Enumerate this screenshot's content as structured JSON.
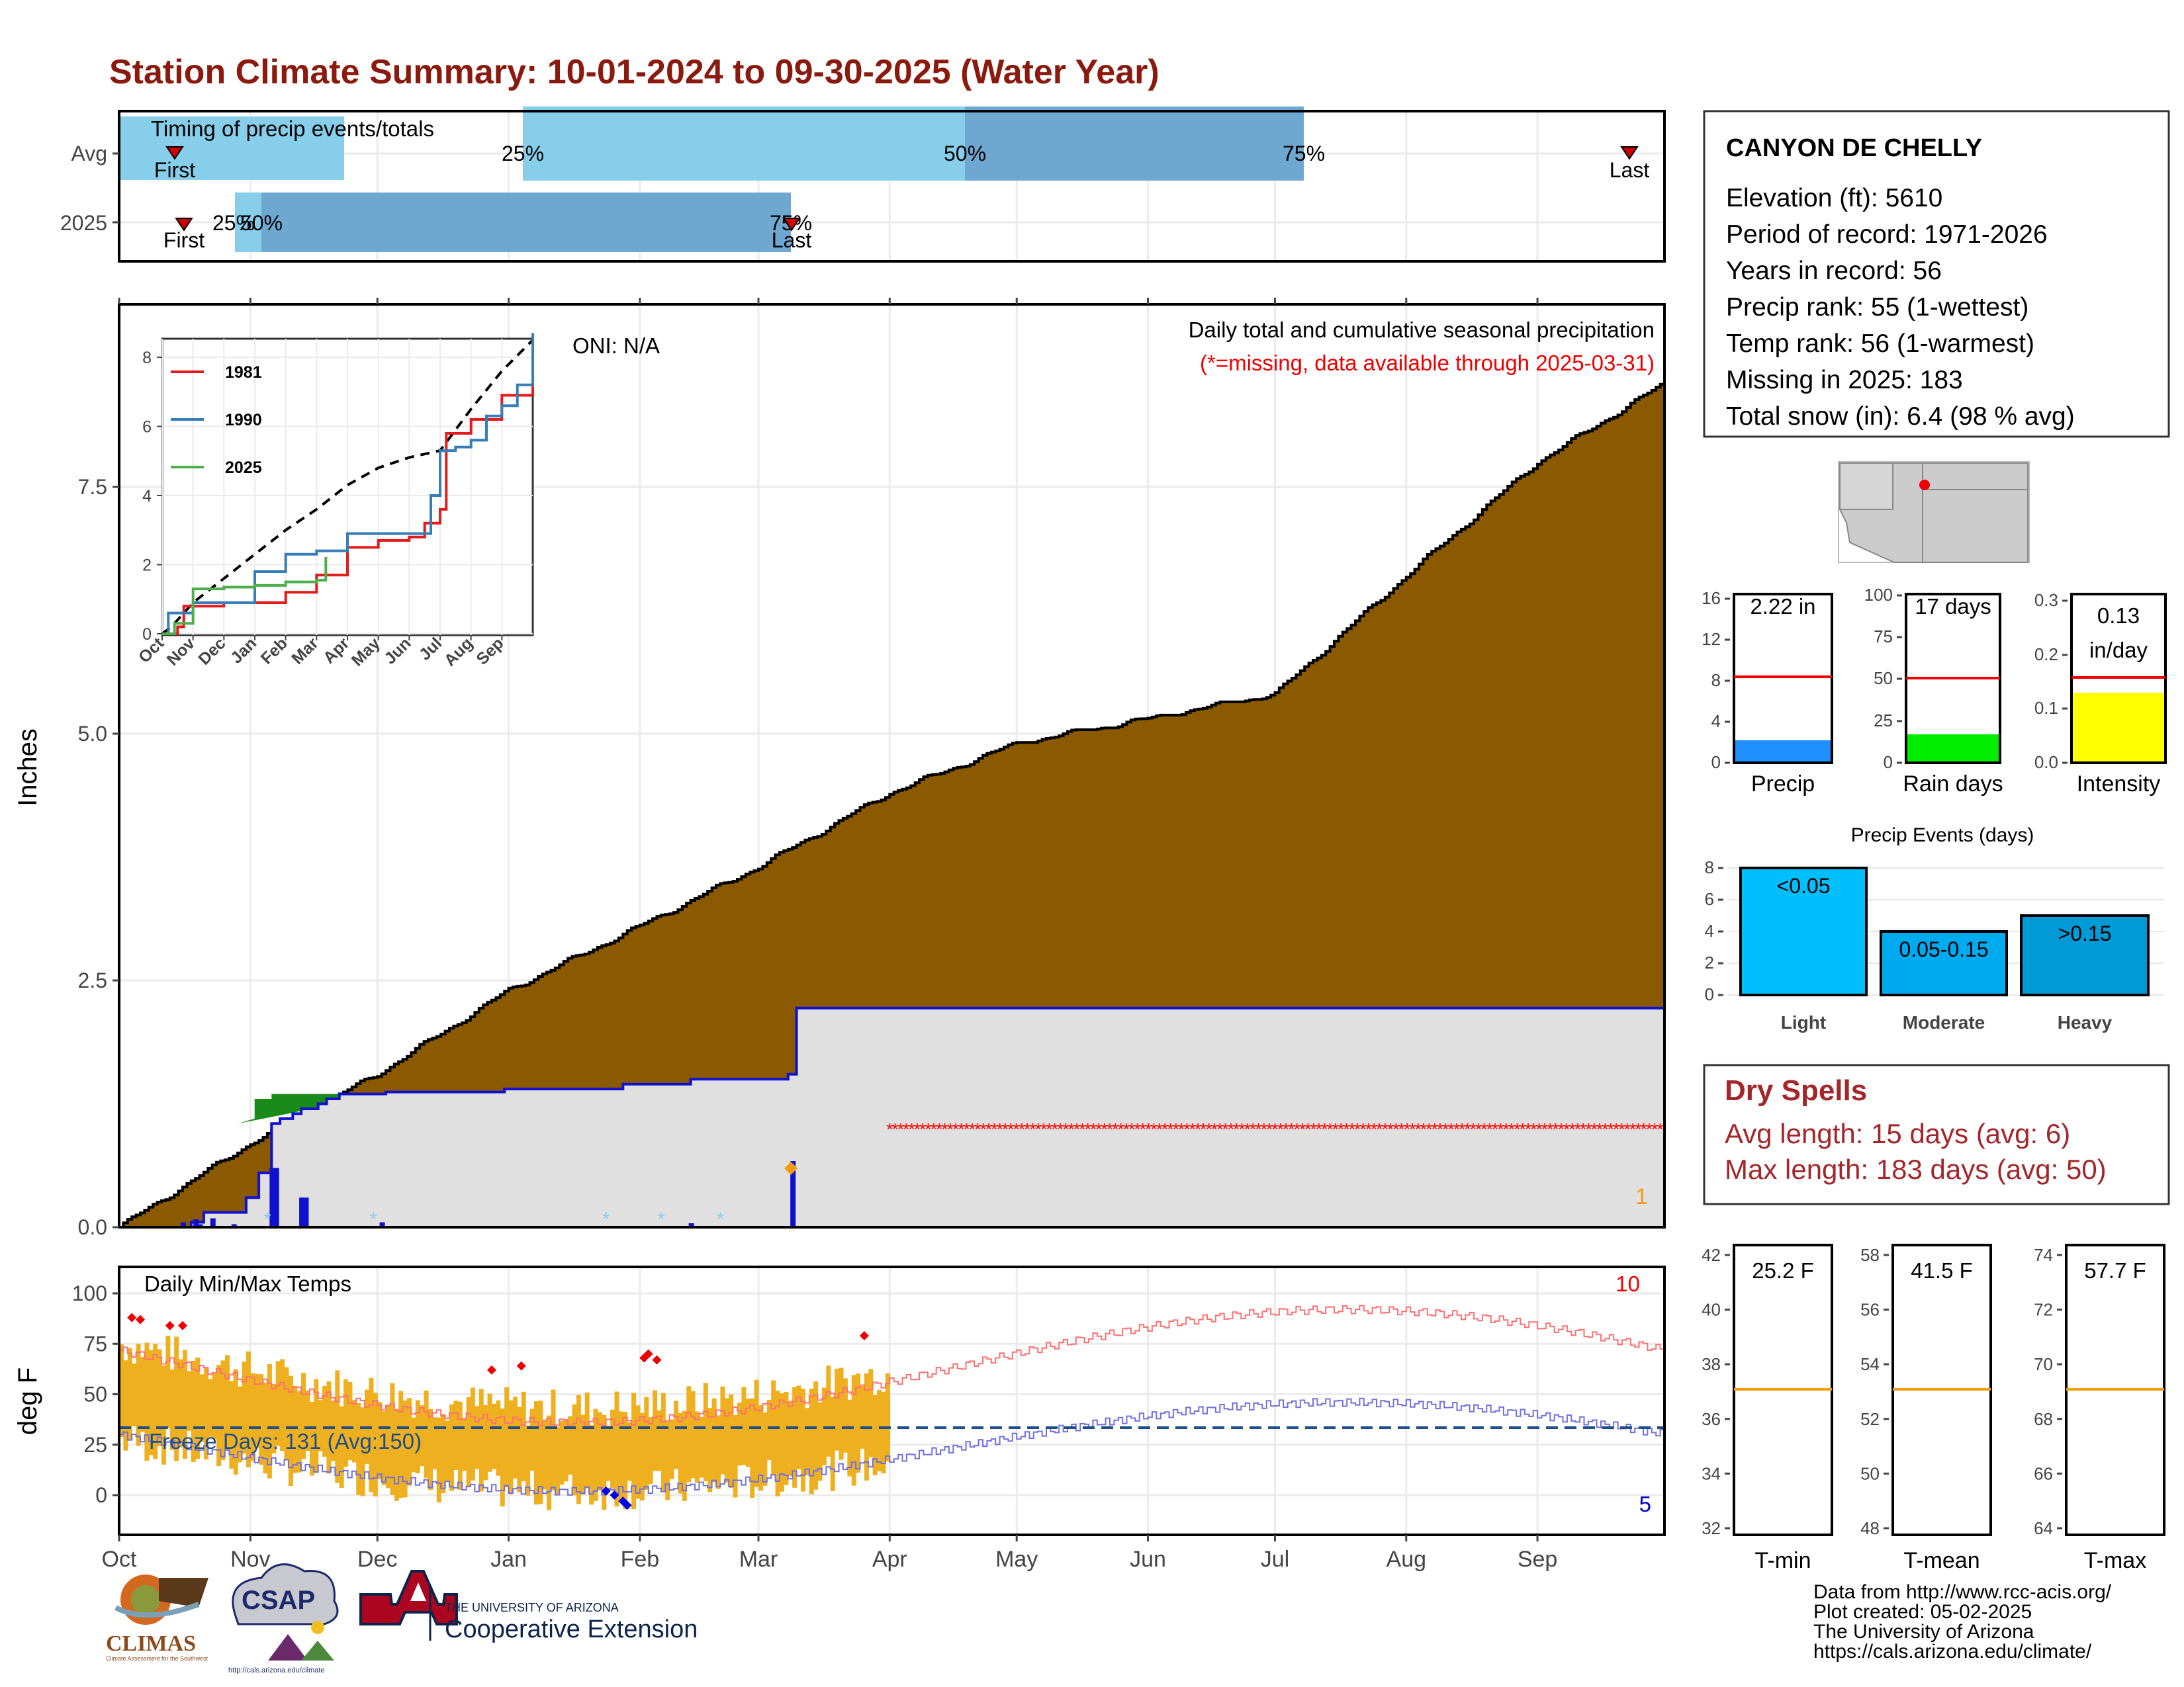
{
  "title": "Station Climate Summary: 10-01-2024 to 09-30-2025 (Water Year)",
  "colors": {
    "title": "#8b1a0e",
    "cum_avg": "#8b5a00",
    "cum_2025": "#1a8a1a",
    "daily_fill": "#e0e0e0",
    "daily_line": "#1010d0",
    "missing": "#ff0000",
    "bar_light": "#8ecfea",
    "bar_dark": "#6ea8d0",
    "temp_bar": "#efb020",
    "tmax_line": "#ff6060",
    "tmin_line": "#6060e0",
    "freeze": "#1f4e8a",
    "dry": "#a3262a"
  },
  "timing": {
    "label": "Timing of precip events/totals",
    "rows": [
      "Avg",
      "2025"
    ],
    "pct": {
      "p25": "25%",
      "p50": "50%",
      "p75": "75%"
    },
    "first": "First",
    "last": "Last"
  },
  "main": {
    "ylabel": "Inches",
    "header": "Daily total and cumulative seasonal precipitation",
    "missing_note": "(*=missing, data available through 2025-03-31)",
    "oni": "ONI: N/A",
    "yticks": [
      "0.0",
      "2.5",
      "5.0",
      "7.5"
    ],
    "corner_count": "1"
  },
  "inset": {
    "yticks": [
      "0",
      "2",
      "4",
      "6",
      "8"
    ],
    "months": [
      "Oct",
      "Nov",
      "Dec",
      "Jan",
      "Feb",
      "Mar",
      "Apr",
      "May",
      "Jun",
      "Jul",
      "Aug",
      "Sep"
    ],
    "legend": [
      "1981",
      "1990",
      "2025"
    ],
    "colors": [
      "#e41a1c",
      "#377eb8",
      "#4daf4a"
    ]
  },
  "temps": {
    "label": "Daily Min/Max Temps",
    "ylabel": "deg F",
    "yticks": [
      "0",
      "25",
      "50",
      "75",
      "100"
    ],
    "freeze": "Freeze Days: 131 (Avg:150)",
    "max_count": "10",
    "min_count": "5"
  },
  "months": [
    "Oct",
    "Nov",
    "Dec",
    "Jan",
    "Feb",
    "Mar",
    "Apr",
    "May",
    "Jun",
    "Jul",
    "Aug",
    "Sep"
  ],
  "station": {
    "name": "CANYON DE CHELLY",
    "lines": [
      "Elevation (ft): 5610",
      "Period of record: 1971-2026",
      "Years in record: 56",
      "Precip rank: 55 (1-wettest)",
      "Temp rank: 56 (1-warmest)",
      "Missing in 2025: 183",
      "Total snow (in): 6.4 (98 % avg)"
    ]
  },
  "mini": {
    "precip": {
      "value": "2.22 in",
      "label": "Precip",
      "yticks": [
        "0",
        "4",
        "8",
        "12",
        "16"
      ]
    },
    "raindays": {
      "value": "17 days",
      "label": "Rain days",
      "yticks": [
        "0",
        "25",
        "50",
        "75",
        "100"
      ]
    },
    "intensity": {
      "value1": "0.13",
      "value2": "in/day",
      "label": "Intensity",
      "yticks": [
        "0.0",
        "0.1",
        "0.2",
        "0.3"
      ]
    }
  },
  "events": {
    "title": "Precip Events (days)",
    "yticks": [
      "0",
      "2",
      "4",
      "6",
      "8"
    ],
    "cats": [
      "Light",
      "Moderate",
      "Heavy"
    ],
    "labels": [
      "<0.05",
      "0.05-0.15",
      ">0.15"
    ]
  },
  "dry": {
    "title": "Dry Spells",
    "avg": "Avg length: 15 days (avg: 6)",
    "max": "Max length: 183 days (avg: 50)"
  },
  "tpanels": {
    "tmin": {
      "value": "25.2 F",
      "label": "T-min",
      "yticks": [
        "32",
        "34",
        "36",
        "38",
        "40",
        "42"
      ]
    },
    "tmean": {
      "value": "41.5 F",
      "label": "T-mean",
      "yticks": [
        "48",
        "50",
        "52",
        "54",
        "56",
        "58"
      ]
    },
    "tmax": {
      "value": "57.7 F",
      "label": "T-max",
      "yticks": [
        "64",
        "66",
        "68",
        "70",
        "72",
        "74"
      ]
    }
  },
  "footer": [
    "Data from http://www.rcc-acis.org/",
    "Plot created: 05-02-2025",
    "The University of Arizona",
    "https://cals.arizona.edu/climate/"
  ],
  "logos": {
    "climas": "CLIMAS",
    "climas_sub": "Climate Assessment for the Southwest",
    "csap": "CSAP",
    "csap_url": "http://cals.arizona.edu/climate",
    "ua": "THE UNIVERSITY OF ARIZONA",
    "ce": "Cooperative Extension"
  },
  "chart_data": {
    "type": "area",
    "title": "Station Climate Summary: 10-01-2024 to 09-30-2025 (Water Year)",
    "ylabel": "Inches",
    "ylim": [
      0,
      8.8
    ],
    "cumulative_avg": {
      "x": [
        "Oct 1",
        "Nov 1",
        "Dec 1",
        "Jan 1",
        "Feb 1",
        "Mar 1",
        "Apr 1",
        "May 1",
        "Jun 1",
        "Jul 1",
        "Aug 1",
        "Sep 1",
        "Sep 30"
      ],
      "values": [
        0,
        0.85,
        1.55,
        2.4,
        3.05,
        3.65,
        4.4,
        4.9,
        5.15,
        5.4,
        6.6,
        7.75,
        8.55
      ]
    },
    "cumulative_2025": {
      "x": [
        "Oct 1",
        "Nov 1",
        "Nov 8",
        "Dec 1",
        "Jan 1",
        "Feb 1",
        "Feb 15",
        "Mar 1",
        "Mar 8",
        "Mar 31"
      ],
      "values": [
        0,
        0.7,
        1.35,
        1.4,
        1.45,
        1.5,
        1.5,
        1.55,
        2.22,
        2.22
      ]
    },
    "data_through": "2025-03-31",
    "total_2025": 2.22
  }
}
